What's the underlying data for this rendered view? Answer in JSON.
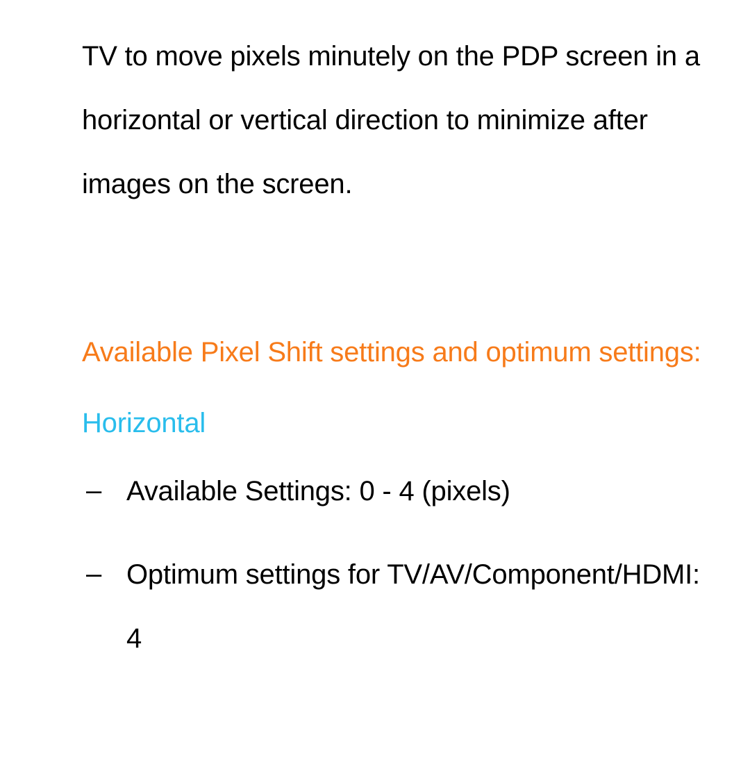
{
  "colors": {
    "text": "#000000",
    "heading_orange": "#f77b1a",
    "heading_blue": "#29bdec",
    "background": "#ffffff"
  },
  "typography": {
    "body_fontsize_pt": 30,
    "line_height": 2.3,
    "font_family": "Helvetica Neue, Helvetica, Arial, sans-serif"
  },
  "intro_paragraph": "TV to move pixels minutely on the PDP screen in a horizontal or vertical direction to minimize after images on the screen.",
  "section_heading": "Available Pixel Shift settings and optimum settings:",
  "horizontal": {
    "label": "Horizontal",
    "items": [
      "Available Settings: 0 - 4 (pixels)",
      "Optimum settings for TV/AV/Component/HDMI: 4"
    ]
  },
  "list_marker": "–"
}
